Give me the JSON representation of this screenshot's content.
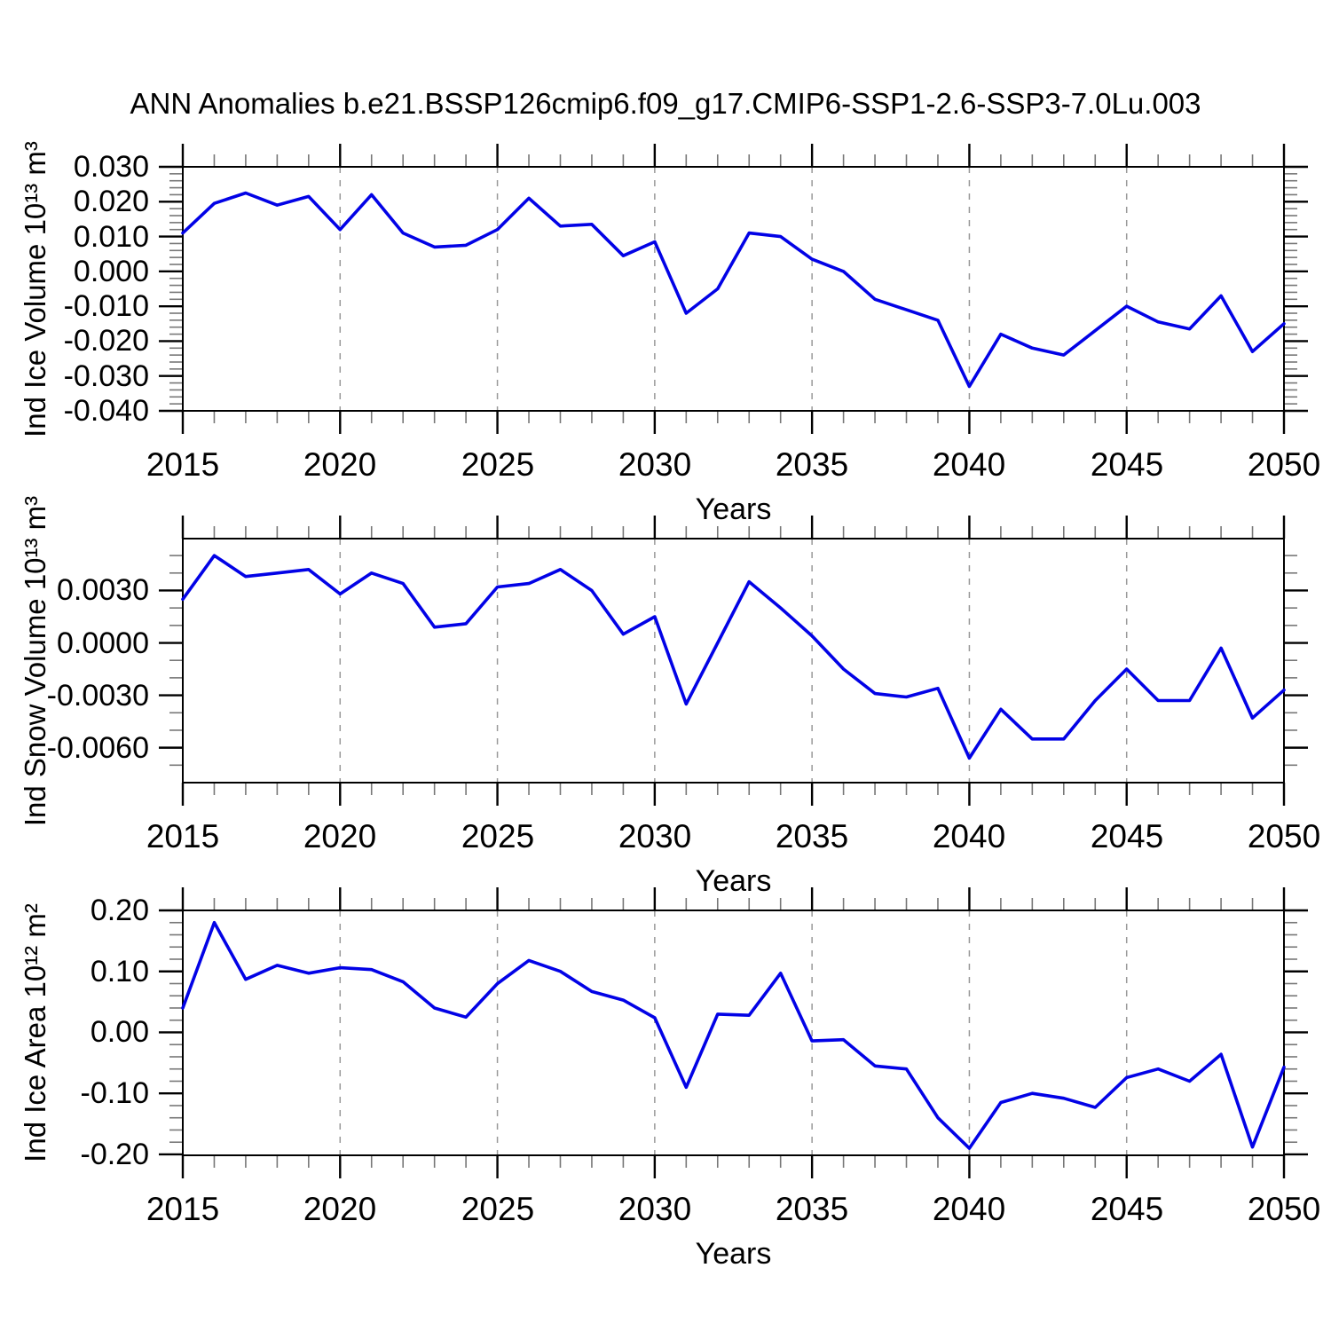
{
  "title": "ANN Anomalies b.e21.BSSP126cmip6.f09_g17.CMIP6-SSP1-2.6-SSP3-7.0Lu.003",
  "colors": {
    "line": "#0202e6",
    "grid": "#999999",
    "axis": "#000000"
  },
  "chart_data": [
    {
      "type": "line",
      "ylabel": "Ind Ice Volume 10¹³ m³",
      "xlabel": "Years",
      "x": [
        2015,
        2016,
        2017,
        2018,
        2019,
        2020,
        2021,
        2022,
        2023,
        2024,
        2025,
        2026,
        2027,
        2028,
        2029,
        2030,
        2031,
        2032,
        2033,
        2034,
        2035,
        2036,
        2037,
        2038,
        2039,
        2040,
        2041,
        2042,
        2043,
        2044,
        2045,
        2046,
        2047,
        2048,
        2049,
        2050
      ],
      "values": [
        0.011,
        0.0195,
        0.0225,
        0.019,
        0.0215,
        0.012,
        0.022,
        0.011,
        0.007,
        0.0075,
        0.012,
        0.021,
        0.013,
        0.0135,
        0.0045,
        0.0085,
        -0.012,
        -0.005,
        0.011,
        0.01,
        0.0035,
        0.0,
        -0.008,
        -0.011,
        -0.014,
        -0.033,
        -0.018,
        -0.022,
        -0.024,
        -0.017,
        -0.01,
        -0.0145,
        -0.0165,
        -0.007,
        -0.023,
        -0.015
      ],
      "ylim": [
        -0.04,
        0.03
      ],
      "ytick_values": [
        0.03,
        0.02,
        0.01,
        0.0,
        -0.01,
        -0.02,
        -0.03,
        -0.04
      ],
      "ytick_labels": [
        "0.030",
        "0.020",
        "0.010",
        "0.000",
        "-0.010",
        "-0.020",
        "-0.030",
        "-0.040"
      ],
      "y_minor_step": 0.002,
      "xlim": [
        2015,
        2050
      ],
      "xtick_values": [
        2015,
        2020,
        2025,
        2030,
        2035,
        2040,
        2045,
        2050
      ],
      "xtick_labels": [
        "2015",
        "2020",
        "2025",
        "2030",
        "2035",
        "2040",
        "2045",
        "2050"
      ],
      "x_minor_step": 1,
      "grid_years": [
        2020,
        2025,
        2030,
        2035,
        2040,
        2045
      ],
      "grid": "vertical-dashed",
      "legend": "none"
    },
    {
      "type": "line",
      "ylabel": "Ind Snow Volume 10¹³ m³",
      "xlabel": "Years",
      "x": [
        2015,
        2016,
        2017,
        2018,
        2019,
        2020,
        2021,
        2022,
        2023,
        2024,
        2025,
        2026,
        2027,
        2028,
        2029,
        2030,
        2031,
        2032,
        2033,
        2034,
        2035,
        2036,
        2037,
        2038,
        2039,
        2040,
        2041,
        2042,
        2043,
        2044,
        2045,
        2046,
        2047,
        2048,
        2049,
        2050
      ],
      "values": [
        0.0025,
        0.005,
        0.0038,
        0.004,
        0.0042,
        0.0028,
        0.004,
        0.0034,
        0.0009,
        0.0011,
        0.0032,
        0.0034,
        0.0042,
        0.003,
        0.0005,
        0.0015,
        -0.0035,
        0.0,
        0.0035,
        0.002,
        0.0004,
        -0.0015,
        -0.0029,
        -0.0031,
        -0.0026,
        -0.0066,
        -0.0038,
        -0.0055,
        -0.0055,
        -0.0033,
        -0.0015,
        -0.0033,
        -0.0033,
        -0.0003,
        -0.0043,
        -0.0027
      ],
      "ylim": [
        -0.008,
        0.00597
      ],
      "ytick_values": [
        0.003,
        0.0,
        -0.003,
        -0.006
      ],
      "ytick_labels": [
        "0.0030",
        "0.0000",
        "-0.0030",
        "-0.0060"
      ],
      "y_minor_step": 0.001,
      "xlim": [
        2015,
        2050
      ],
      "xtick_values": [
        2015,
        2020,
        2025,
        2030,
        2035,
        2040,
        2045,
        2050
      ],
      "xtick_labels": [
        "2015",
        "2020",
        "2025",
        "2030",
        "2035",
        "2040",
        "2045",
        "2050"
      ],
      "x_minor_step": 1,
      "grid_years": [
        2020,
        2025,
        2030,
        2035,
        2040,
        2045
      ],
      "grid": "vertical-dashed",
      "legend": "none"
    },
    {
      "type": "line",
      "ylabel": "Ind Ice Area 10¹² m²",
      "xlabel": "Years",
      "x": [
        2015,
        2016,
        2017,
        2018,
        2019,
        2020,
        2021,
        2022,
        2023,
        2024,
        2025,
        2026,
        2027,
        2028,
        2029,
        2030,
        2031,
        2032,
        2033,
        2034,
        2035,
        2036,
        2037,
        2038,
        2039,
        2040,
        2041,
        2042,
        2043,
        2044,
        2045,
        2046,
        2047,
        2048,
        2049,
        2050
      ],
      "values": [
        0.04,
        0.18,
        0.087,
        0.11,
        0.097,
        0.106,
        0.103,
        0.083,
        0.04,
        0.025,
        0.08,
        0.118,
        0.1,
        0.067,
        0.053,
        0.024,
        -0.09,
        0.03,
        0.028,
        0.097,
        -0.014,
        -0.012,
        -0.055,
        -0.06,
        -0.14,
        -0.19,
        -0.115,
        -0.1,
        -0.108,
        -0.123,
        -0.074,
        -0.06,
        -0.08,
        -0.036,
        -0.188,
        -0.057
      ],
      "ylim": [
        -0.2015,
        0.2
      ],
      "ytick_values": [
        0.2,
        0.1,
        0.0,
        -0.1,
        -0.2
      ],
      "ytick_labels": [
        "0.20",
        "0.10",
        "0.00",
        "-0.10",
        "-0.20"
      ],
      "y_minor_step": 0.02,
      "xlim": [
        2015,
        2050
      ],
      "xtick_values": [
        2015,
        2020,
        2025,
        2030,
        2035,
        2040,
        2045,
        2050
      ],
      "xtick_labels": [
        "2015",
        "2020",
        "2025",
        "2030",
        "2035",
        "2040",
        "2045",
        "2050"
      ],
      "x_minor_step": 1,
      "grid_years": [
        2020,
        2025,
        2030,
        2035,
        2040,
        2045
      ],
      "grid": "vertical-dashed",
      "legend": "none"
    }
  ]
}
